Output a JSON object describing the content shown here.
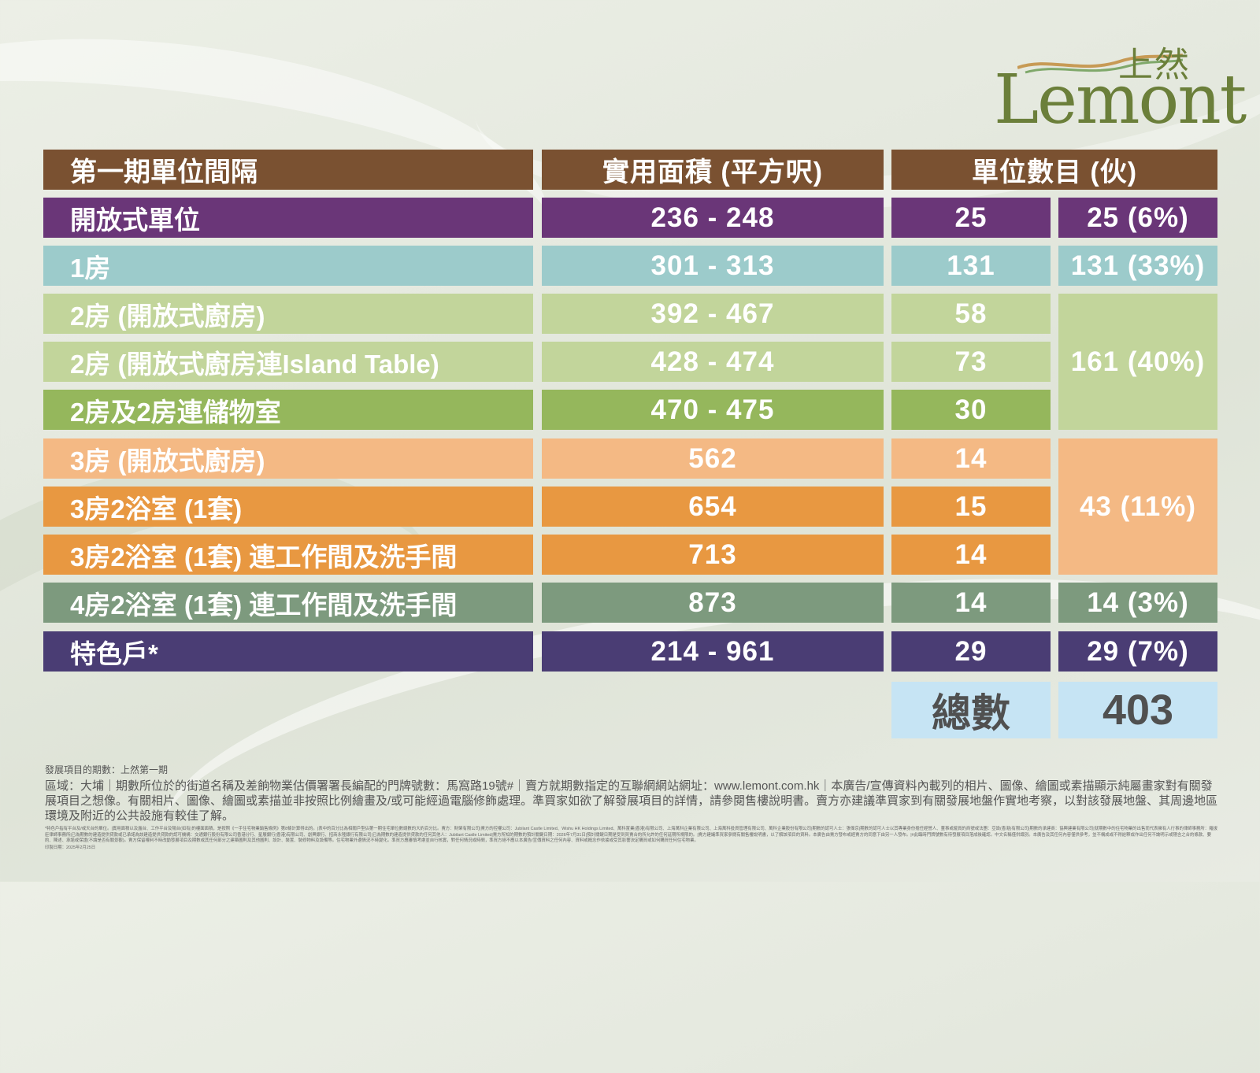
{
  "brand": {
    "logo_chinese": "上然",
    "logo_english": "Lemont"
  },
  "colors": {
    "header": "#7a5131",
    "open_studio": "#6a3678",
    "one_bed": "#9ccbcb",
    "two_bed_open": "#c2d59b",
    "two_bed_island": "#c2d59b",
    "two_bed_storage": "#95b75c",
    "three_bed_open": "#f4b984",
    "three_bed_2bath": "#e89841",
    "three_bed_2bath_work": "#e89841",
    "four_bed": "#7d9a7e",
    "special": "#4a3d74",
    "total": "#c6e4f4"
  },
  "table": {
    "headers": [
      "第一期單位間隔",
      "實用面積 (平方呎)",
      "單位數目 (伙)"
    ],
    "rows": [
      {
        "name": "開放式單位",
        "area": "236 - 248",
        "count": "25"
      },
      {
        "name": "1房",
        "area": "301 - 313",
        "count": "131"
      },
      {
        "name": "2房 (開放式廚房)",
        "area": "392 - 467",
        "count": "58"
      },
      {
        "name": "2房 (開放式廚房連Island Table)",
        "area": "428 - 474",
        "count": "73"
      },
      {
        "name": "2房及2房連儲物室",
        "area": "470 - 475",
        "count": "30"
      },
      {
        "name": "3房 (開放式廚房)",
        "area": "562",
        "count": "14"
      },
      {
        "name": "3房2浴室 (1套)",
        "area": "654",
        "count": "15"
      },
      {
        "name": "3房2浴室 (1套) 連工作間及洗手間",
        "area": "713",
        "count": "14"
      },
      {
        "name": "4房2浴室 (1套) 連工作間及洗手間",
        "area": "873",
        "count": "14"
      },
      {
        "name": "特色戶*",
        "area": "214 - 961",
        "count": "29"
      }
    ],
    "group_totals": [
      "25 (6%)",
      "131 (33%)",
      "161 (40%)",
      "43 (11%)",
      "14 (3%)",
      "29 (7%)"
    ],
    "total_label": "總數",
    "total_value": "403"
  },
  "footer": {
    "line1": "發展項目的期數：上然第一期",
    "line2": "區域：大埔｜期數所位於的街道名稱及差餉物業估價署署長編配的門牌號數：馬窩路19號#｜賣方就期數指定的互聯網網站網址：www.lemont.com.hk｜本廣告/宣傳資料內載列的相片、圖像、繪圖或素描顯示純屬畫家對有關發展項目之想像。有關相片、圖像、繪圖或素描並非按照比例繪畫及/或可能經過電腦修飾處理。準買家如欲了解發展項目的詳情，請參閱售樓說明書。賣方亦建議準買家到有關發展地盤作實地考察，以對該發展地盤、其周邊地區環境及附近的公共設施有較佳了解。",
    "fine_print": "*特色戶指有平台及/或天台的單位。|實用面積以及露台、工作平台及陽台(如有)的樓面面積，是按照《一手住宅物業銷售條例》第8條計算得出的。|表中的百分比為相關戶型佔第一期住宅單位數總數的大約百分比。賣方：財榮有限公司|賣方的控權公司：Jubilant Castle Limited、Wishu HK Holdings Limited、萬科置業(香港)有限公司、上海萬科企業有限公司、上海萬科投資管理有限公司、萬科企業股份有限公司|期數的認可人士：張偉京|期數的認可人士以其專業身份擔任經營人、董事或僱員的商號或法團：亞設(香港)有限公司|期數的承建商：協興建業有限公司|就期數中的住宅物業的出售而代表擁有人行事的律師事務所：羅拔臣律師事務所|已為期數的建造提供貸款或已承諾為該建造提供貸款的認可機構：交通銀行股份有限公司香港分行、星展銀行(香港)有限公司、創興銀行、招商永隆銀行有限公司|已為期數的建造提供貸款的任何其他人：Jubilant Castle Limited|賣方所知的期數的預計關鍵日期：2026年7月31日|預計關鍵日期是受到買賣合約所允許的任何延期所規限的。|賣方建議準買家參閱有關售樓說明書，以了解該項目的資料。本廣告由賣方發布或經賣方的同意下由另一人發布。|#此臨時門牌號數有待發展項目落成後確認。中文名稱僅供識別。本廣告及其任何內容僅供參考，並不構成或不得詮釋成作出任何不論明示或隱含之合約條款、要約、陳述、承諾或保證(不論是否有關景觀)。賣方保留權利不時改動發展項目及期數或其任何部分之建築圖則及其他圖則、設計、裝置、裝修物料及設備等。住宅物業外邊情況不時變化。準買方應審慎考慮並自行核實，對任何情況或時間，準買方絕不應以本廣告/宣傳資料之任何內容、資料或概念作依據或受其影響決定購買或如何購買任何住宅物業。",
    "print_date": "印製日期：2025年2月25日"
  }
}
